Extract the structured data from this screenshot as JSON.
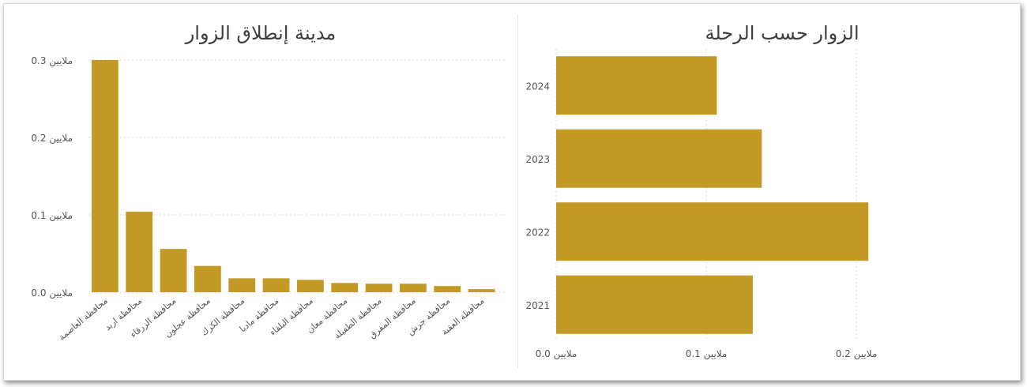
{
  "colors": {
    "bar": "#C49A26",
    "grid": "#d8d8d8",
    "text": "#555555",
    "title": "#3d3d3d"
  },
  "chart_data": [
    {
      "type": "bar",
      "title": "مدينة إنطلاق الزوار",
      "categories": [
        "محافظة العاصمة",
        "محافظة اربد",
        "محافظة الزرقاء",
        "محافظة عجلون",
        "محافظة الكرك",
        "محافظة مادبا",
        "محافظة البلقاء",
        "محافظة معان",
        "محافظة الطفيلة",
        "محافظة المفرق",
        "محافظة جرش",
        "محافظة العقبة"
      ],
      "values": [
        0.3,
        0.104,
        0.056,
        0.034,
        0.018,
        0.018,
        0.016,
        0.012,
        0.011,
        0.011,
        0.008,
        0.004
      ],
      "ylim": [
        0,
        0.3
      ],
      "yticks": [
        0.0,
        0.1,
        0.2,
        0.3
      ],
      "ytick_labels": [
        "0.0 ملايين",
        "0.1 ملايين",
        "0.2 ملايين",
        "0.3 ملايين"
      ],
      "grid": true
    },
    {
      "type": "bar",
      "orientation": "horizontal",
      "title": "الزوار حسب الرحلة",
      "categories": [
        "2024",
        "2023",
        "2022",
        "2021"
      ],
      "values": [
        0.107,
        0.137,
        0.208,
        0.131
      ],
      "xlim": [
        0,
        0.2
      ],
      "xticks": [
        0.0,
        0.1,
        0.2
      ],
      "xtick_labels": [
        "0.0 ملايين",
        "0.1 ملايين",
        "0.2 ملايين"
      ],
      "grid": true
    }
  ]
}
